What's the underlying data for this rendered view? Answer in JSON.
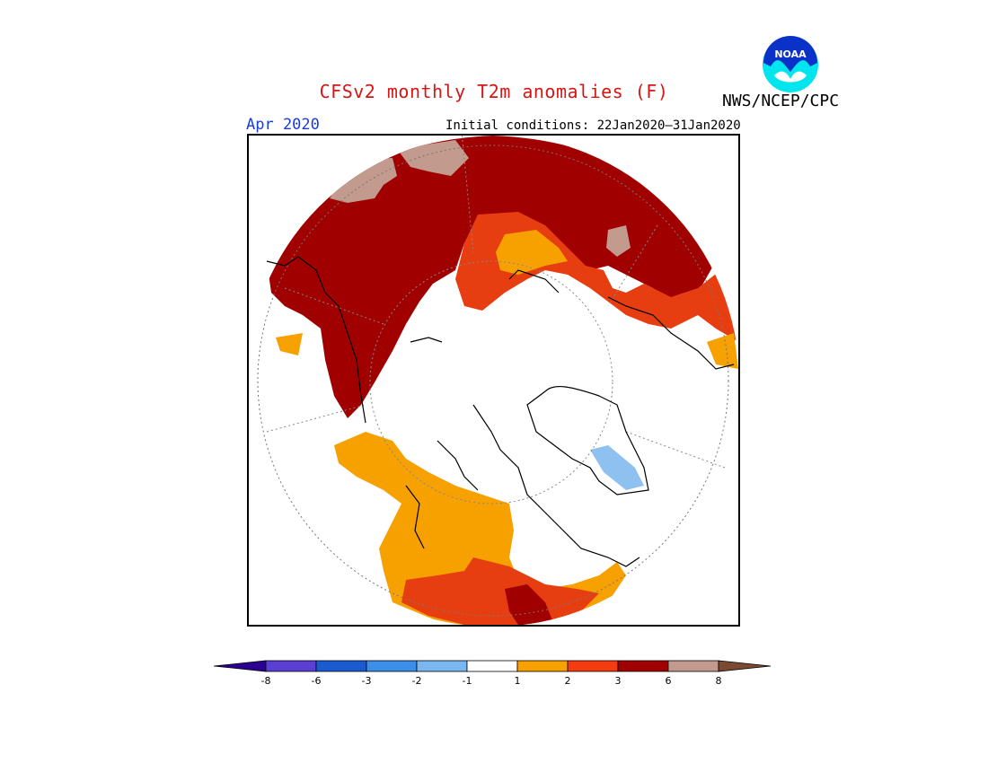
{
  "header": {
    "title": "CFSv2 monthly T2m anomalies (F)",
    "agency": "NWS/NCEP/CPC",
    "logo_text": "NOAA"
  },
  "map": {
    "month_label": "Apr 2020",
    "initial_conditions": "Initial conditions: 22Jan2020–31Jan2020",
    "projection": "north-polar-stereographic",
    "colors": {
      "anom_gt_8": "#c39a8e",
      "anom_6_8": "#a00000",
      "anom_3_6": "#e63e10",
      "anom_2_3": "#f28a1a",
      "anom_1_2": "#f7a100",
      "anom_neg_1_2": "#8ec0f0",
      "ocean_neutral": "#ffffff",
      "coastline": "#000000"
    }
  },
  "legend": {
    "ticks": [
      "-8",
      "-6",
      "-3",
      "-2",
      "-1",
      "1",
      "2",
      "3",
      "6",
      "8"
    ],
    "bins": [
      {
        "color": "#2b0091"
      },
      {
        "color": "#5b3fd3"
      },
      {
        "color": "#1b5bd0"
      },
      {
        "color": "#3d8ee8"
      },
      {
        "color": "#7ab7f1"
      },
      {
        "color": "#ffffff"
      },
      {
        "color": "#f7a100"
      },
      {
        "color": "#f43c10"
      },
      {
        "color": "#a00000"
      },
      {
        "color": "#c39a8e"
      },
      {
        "color": "#7b4a32"
      }
    ]
  }
}
